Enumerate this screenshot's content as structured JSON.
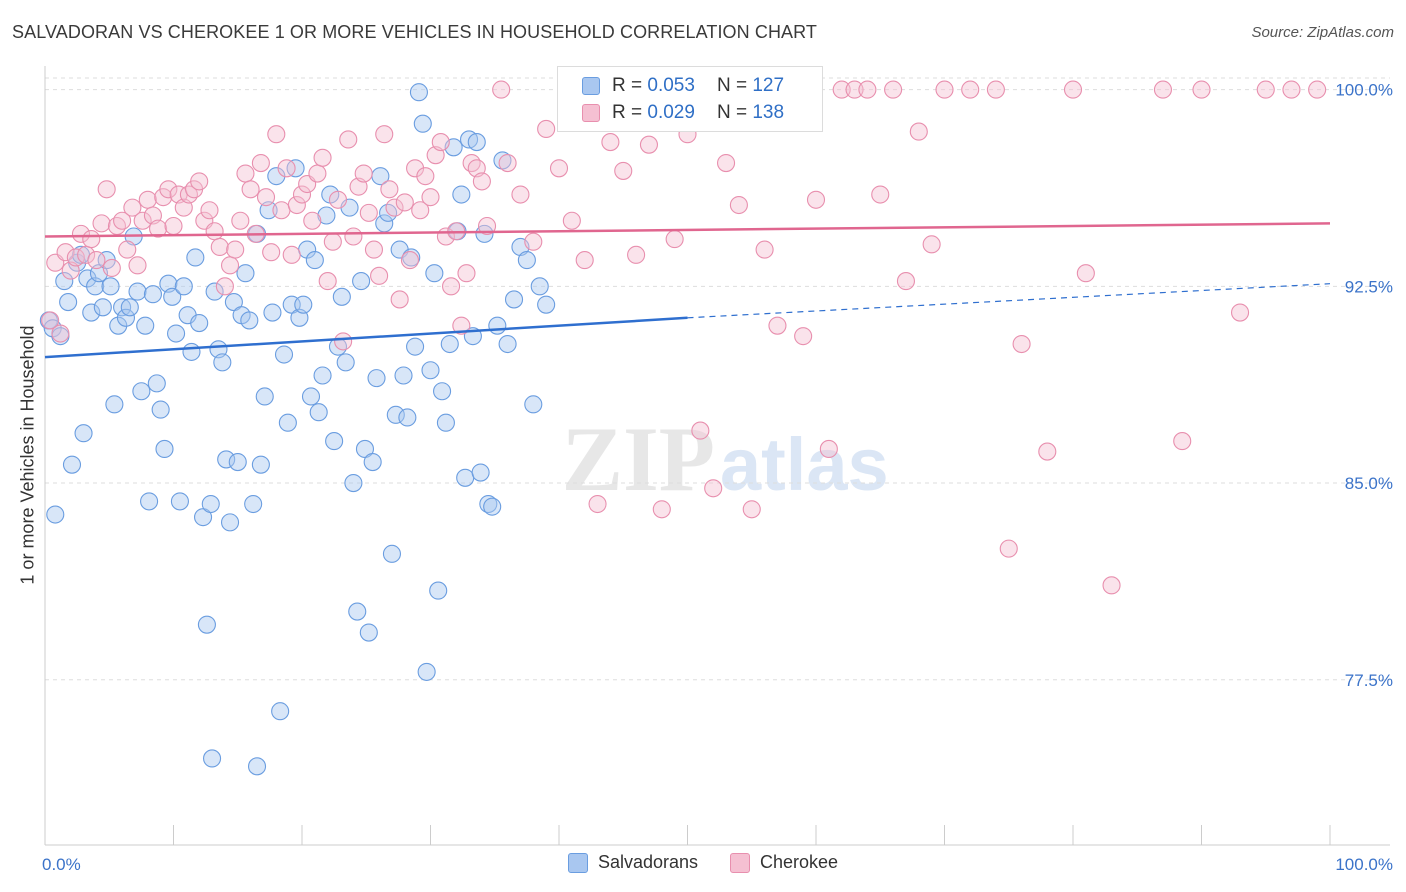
{
  "title": "SALVADORAN VS CHEROKEE 1 OR MORE VEHICLES IN HOUSEHOLD CORRELATION CHART",
  "source": "Source: ZipAtlas.com",
  "watermark": {
    "zip": "ZIP",
    "atlas": "atlas"
  },
  "legend": [
    {
      "r_label": "R =",
      "r_value": "0.053",
      "n_label": "N =",
      "n_value": "127"
    },
    {
      "r_label": "R =",
      "r_value": "0.029",
      "n_label": "N =",
      "n_value": "138"
    }
  ],
  "chart_data": {
    "type": "scatter",
    "ylabel": "1 or more Vehicles in Household",
    "xlabel": "",
    "xlim": [
      0,
      100
    ],
    "ylim": [
      71.2,
      100.9
    ],
    "x_tick_labels": [
      {
        "value": 0,
        "label": "0.0%"
      },
      {
        "value": 100,
        "label": "100.0%"
      }
    ],
    "y_tick_labels": [
      {
        "value": 100.0,
        "label": "100.0%"
      },
      {
        "value": 92.5,
        "label": "92.5%"
      },
      {
        "value": 85.0,
        "label": "85.0%"
      },
      {
        "value": 77.5,
        "label": "77.5%"
      }
    ],
    "grid": "horizontal dashed",
    "legend_position": "bottom-center",
    "series": [
      {
        "name": "Salvadorans",
        "color": "#6a9de0",
        "fill": "#a9c7f0",
        "trend": {
          "x": [
            0,
            50,
            100
          ],
          "y": [
            89.8,
            91.3,
            92.6
          ],
          "solid_until": 50
        },
        "points": [
          [
            0.3,
            91.2
          ],
          [
            0.6,
            90.9
          ],
          [
            0.8,
            83.8
          ],
          [
            1.2,
            90.6
          ],
          [
            1.5,
            92.7
          ],
          [
            1.8,
            91.9
          ],
          [
            2.1,
            85.7
          ],
          [
            2.5,
            93.4
          ],
          [
            2.8,
            93.7
          ],
          [
            3.0,
            86.9
          ],
          [
            3.3,
            92.8
          ],
          [
            3.6,
            91.5
          ],
          [
            3.9,
            92.5
          ],
          [
            4.2,
            93.0
          ],
          [
            4.5,
            91.7
          ],
          [
            4.8,
            93.5
          ],
          [
            5.1,
            92.5
          ],
          [
            5.4,
            88.0
          ],
          [
            5.7,
            91.0
          ],
          [
            6.0,
            91.7
          ],
          [
            6.3,
            91.3
          ],
          [
            6.6,
            91.7
          ],
          [
            6.9,
            94.4
          ],
          [
            7.2,
            92.3
          ],
          [
            7.5,
            88.5
          ],
          [
            7.8,
            91.0
          ],
          [
            8.1,
            84.3
          ],
          [
            8.4,
            92.2
          ],
          [
            8.7,
            88.8
          ],
          [
            9.0,
            87.8
          ],
          [
            9.3,
            86.3
          ],
          [
            9.6,
            92.6
          ],
          [
            9.9,
            92.1
          ],
          [
            10.2,
            90.7
          ],
          [
            10.5,
            84.3
          ],
          [
            10.8,
            92.5
          ],
          [
            11.1,
            91.4
          ],
          [
            11.4,
            90.0
          ],
          [
            11.7,
            93.6
          ],
          [
            12.0,
            91.1
          ],
          [
            12.3,
            83.7
          ],
          [
            12.6,
            79.6
          ],
          [
            12.9,
            84.2
          ],
          [
            13.2,
            92.3
          ],
          [
            13.5,
            90.1
          ],
          [
            13.8,
            89.6
          ],
          [
            14.1,
            85.9
          ],
          [
            14.4,
            83.5
          ],
          [
            14.7,
            91.9
          ],
          [
            15.0,
            85.8
          ],
          [
            15.3,
            91.4
          ],
          [
            15.6,
            93.0
          ],
          [
            15.9,
            91.2
          ],
          [
            16.2,
            84.2
          ],
          [
            16.5,
            94.5
          ],
          [
            16.8,
            85.7
          ],
          [
            17.1,
            88.3
          ],
          [
            17.4,
            95.4
          ],
          [
            17.7,
            91.5
          ],
          [
            18.0,
            96.7
          ],
          [
            18.3,
            76.3
          ],
          [
            18.6,
            89.9
          ],
          [
            18.9,
            87.3
          ],
          [
            19.2,
            91.8
          ],
          [
            19.5,
            97.0
          ],
          [
            19.8,
            91.3
          ],
          [
            20.1,
            91.8
          ],
          [
            20.4,
            93.9
          ],
          [
            20.7,
            88.3
          ],
          [
            21.0,
            93.5
          ],
          [
            21.3,
            87.7
          ],
          [
            21.6,
            89.1
          ],
          [
            21.9,
            95.2
          ],
          [
            22.2,
            96.0
          ],
          [
            22.5,
            86.6
          ],
          [
            22.8,
            90.2
          ],
          [
            23.1,
            92.1
          ],
          [
            23.4,
            89.6
          ],
          [
            23.7,
            95.5
          ],
          [
            24.0,
            85.0
          ],
          [
            24.3,
            80.1
          ],
          [
            24.6,
            92.7
          ],
          [
            24.9,
            86.3
          ],
          [
            25.2,
            79.3
          ],
          [
            25.5,
            85.8
          ],
          [
            25.8,
            89.0
          ],
          [
            26.1,
            96.7
          ],
          [
            26.4,
            94.9
          ],
          [
            26.7,
            95.3
          ],
          [
            27.0,
            82.3
          ],
          [
            27.3,
            87.6
          ],
          [
            27.6,
            93.9
          ],
          [
            27.9,
            89.1
          ],
          [
            28.2,
            87.5
          ],
          [
            28.5,
            93.6
          ],
          [
            28.8,
            90.2
          ],
          [
            29.1,
            99.9
          ],
          [
            29.4,
            98.7
          ],
          [
            29.7,
            77.8
          ],
          [
            30.0,
            89.3
          ],
          [
            30.3,
            93.0
          ],
          [
            30.6,
            80.9
          ],
          [
            30.9,
            88.5
          ],
          [
            31.2,
            87.3
          ],
          [
            31.5,
            90.3
          ],
          [
            31.8,
            97.8
          ],
          [
            32.1,
            94.6
          ],
          [
            32.4,
            96.0
          ],
          [
            32.7,
            85.2
          ],
          [
            33.0,
            98.1
          ],
          [
            33.3,
            90.6
          ],
          [
            33.6,
            98.0
          ],
          [
            33.9,
            85.4
          ],
          [
            34.2,
            94.5
          ],
          [
            34.5,
            84.2
          ],
          [
            34.8,
            84.1
          ],
          [
            35.2,
            91.0
          ],
          [
            35.6,
            97.3
          ],
          [
            36.0,
            90.3
          ],
          [
            36.5,
            92.0
          ],
          [
            37.0,
            94.0
          ],
          [
            37.5,
            93.5
          ],
          [
            38.0,
            88.0
          ],
          [
            38.5,
            92.5
          ],
          [
            39.0,
            91.8
          ],
          [
            13.0,
            74.5
          ],
          [
            16.5,
            74.2
          ]
        ]
      },
      {
        "name": "Cherokee",
        "color": "#e88fae",
        "fill": "#f5c0d2",
        "trend": {
          "x": [
            0,
            100
          ],
          "y": [
            94.4,
            94.9
          ],
          "solid_until": 100
        },
        "points": [
          [
            0.4,
            91.2
          ],
          [
            0.8,
            93.4
          ],
          [
            1.2,
            90.7
          ],
          [
            1.6,
            93.8
          ],
          [
            2.0,
            93.1
          ],
          [
            2.4,
            93.6
          ],
          [
            2.8,
            94.5
          ],
          [
            3.2,
            93.7
          ],
          [
            3.6,
            94.3
          ],
          [
            4.0,
            93.5
          ],
          [
            4.4,
            94.9
          ],
          [
            4.8,
            96.2
          ],
          [
            5.2,
            93.2
          ],
          [
            5.6,
            94.8
          ],
          [
            6.0,
            95.0
          ],
          [
            6.4,
            93.9
          ],
          [
            6.8,
            95.5
          ],
          [
            7.2,
            93.3
          ],
          [
            7.6,
            95.0
          ],
          [
            8.0,
            95.8
          ],
          [
            8.4,
            95.2
          ],
          [
            8.8,
            94.7
          ],
          [
            9.2,
            95.9
          ],
          [
            9.6,
            96.2
          ],
          [
            10.0,
            94.8
          ],
          [
            10.4,
            96.0
          ],
          [
            10.8,
            95.5
          ],
          [
            11.2,
            96.0
          ],
          [
            11.6,
            96.2
          ],
          [
            12.0,
            96.5
          ],
          [
            12.4,
            95.0
          ],
          [
            12.8,
            95.4
          ],
          [
            13.2,
            94.6
          ],
          [
            13.6,
            94.0
          ],
          [
            14.0,
            92.5
          ],
          [
            14.4,
            93.3
          ],
          [
            14.8,
            93.9
          ],
          [
            15.2,
            95.0
          ],
          [
            15.6,
            96.8
          ],
          [
            16.0,
            96.2
          ],
          [
            16.4,
            94.5
          ],
          [
            16.8,
            97.2
          ],
          [
            17.2,
            95.9
          ],
          [
            17.6,
            93.8
          ],
          [
            18.0,
            98.3
          ],
          [
            18.4,
            95.4
          ],
          [
            18.8,
            97.0
          ],
          [
            19.2,
            93.7
          ],
          [
            19.6,
            95.6
          ],
          [
            20.0,
            96.0
          ],
          [
            20.4,
            96.4
          ],
          [
            20.8,
            95.0
          ],
          [
            21.2,
            96.8
          ],
          [
            21.6,
            97.4
          ],
          [
            22.0,
            92.7
          ],
          [
            22.4,
            94.2
          ],
          [
            22.8,
            95.8
          ],
          [
            23.2,
            90.4
          ],
          [
            23.6,
            98.1
          ],
          [
            24.0,
            94.4
          ],
          [
            24.4,
            96.3
          ],
          [
            24.8,
            96.8
          ],
          [
            25.2,
            95.3
          ],
          [
            25.6,
            93.9
          ],
          [
            26.0,
            92.9
          ],
          [
            26.4,
            98.3
          ],
          [
            26.8,
            96.2
          ],
          [
            27.2,
            95.5
          ],
          [
            27.6,
            92.0
          ],
          [
            28.0,
            95.7
          ],
          [
            28.4,
            93.5
          ],
          [
            28.8,
            97.0
          ],
          [
            29.2,
            95.4
          ],
          [
            29.6,
            96.7
          ],
          [
            30.0,
            95.9
          ],
          [
            30.4,
            97.5
          ],
          [
            30.8,
            98.0
          ],
          [
            31.2,
            94.4
          ],
          [
            31.6,
            92.5
          ],
          [
            32.0,
            94.6
          ],
          [
            32.4,
            91.0
          ],
          [
            32.8,
            93.0
          ],
          [
            33.2,
            97.2
          ],
          [
            33.6,
            97.0
          ],
          [
            34.0,
            96.5
          ],
          [
            34.4,
            94.8
          ],
          [
            35.5,
            100.0
          ],
          [
            36.0,
            97.2
          ],
          [
            37.0,
            96.0
          ],
          [
            38.0,
            94.2
          ],
          [
            39.0,
            98.5
          ],
          [
            40.0,
            97.0
          ],
          [
            41.0,
            95.0
          ],
          [
            42.0,
            93.5
          ],
          [
            43.0,
            84.2
          ],
          [
            44.0,
            98.0
          ],
          [
            45.0,
            96.9
          ],
          [
            46.0,
            93.7
          ],
          [
            47.0,
            97.9
          ],
          [
            48.0,
            84.0
          ],
          [
            49.0,
            94.3
          ],
          [
            50.0,
            98.3
          ],
          [
            51.0,
            87.0
          ],
          [
            52.0,
            84.8
          ],
          [
            53.0,
            97.2
          ],
          [
            54.0,
            95.6
          ],
          [
            55.0,
            84.0
          ],
          [
            56.0,
            93.9
          ],
          [
            57.0,
            91.0
          ],
          [
            58.0,
            100.0
          ],
          [
            59.0,
            90.6
          ],
          [
            60.0,
            95.8
          ],
          [
            61.0,
            86.3
          ],
          [
            62.0,
            100.0
          ],
          [
            63.0,
            100.0
          ],
          [
            64.0,
            100.0
          ],
          [
            65.0,
            96.0
          ],
          [
            66.0,
            100.0
          ],
          [
            67.0,
            92.7
          ],
          [
            68.0,
            98.4
          ],
          [
            69.0,
            94.1
          ],
          [
            70.0,
            100.0
          ],
          [
            72.0,
            100.0
          ],
          [
            74.0,
            100.0
          ],
          [
            75.0,
            82.5
          ],
          [
            76.0,
            90.3
          ],
          [
            78.0,
            86.2
          ],
          [
            80.0,
            100.0
          ],
          [
            81.0,
            93.0
          ],
          [
            83.0,
            81.1
          ],
          [
            87.0,
            100.0
          ],
          [
            88.5,
            86.6
          ],
          [
            90.0,
            100.0
          ],
          [
            93.0,
            91.5
          ],
          [
            95.0,
            100.0
          ],
          [
            97.0,
            100.0
          ],
          [
            99.0,
            100.0
          ],
          [
            45.3,
            100.0
          ]
        ]
      }
    ]
  }
}
